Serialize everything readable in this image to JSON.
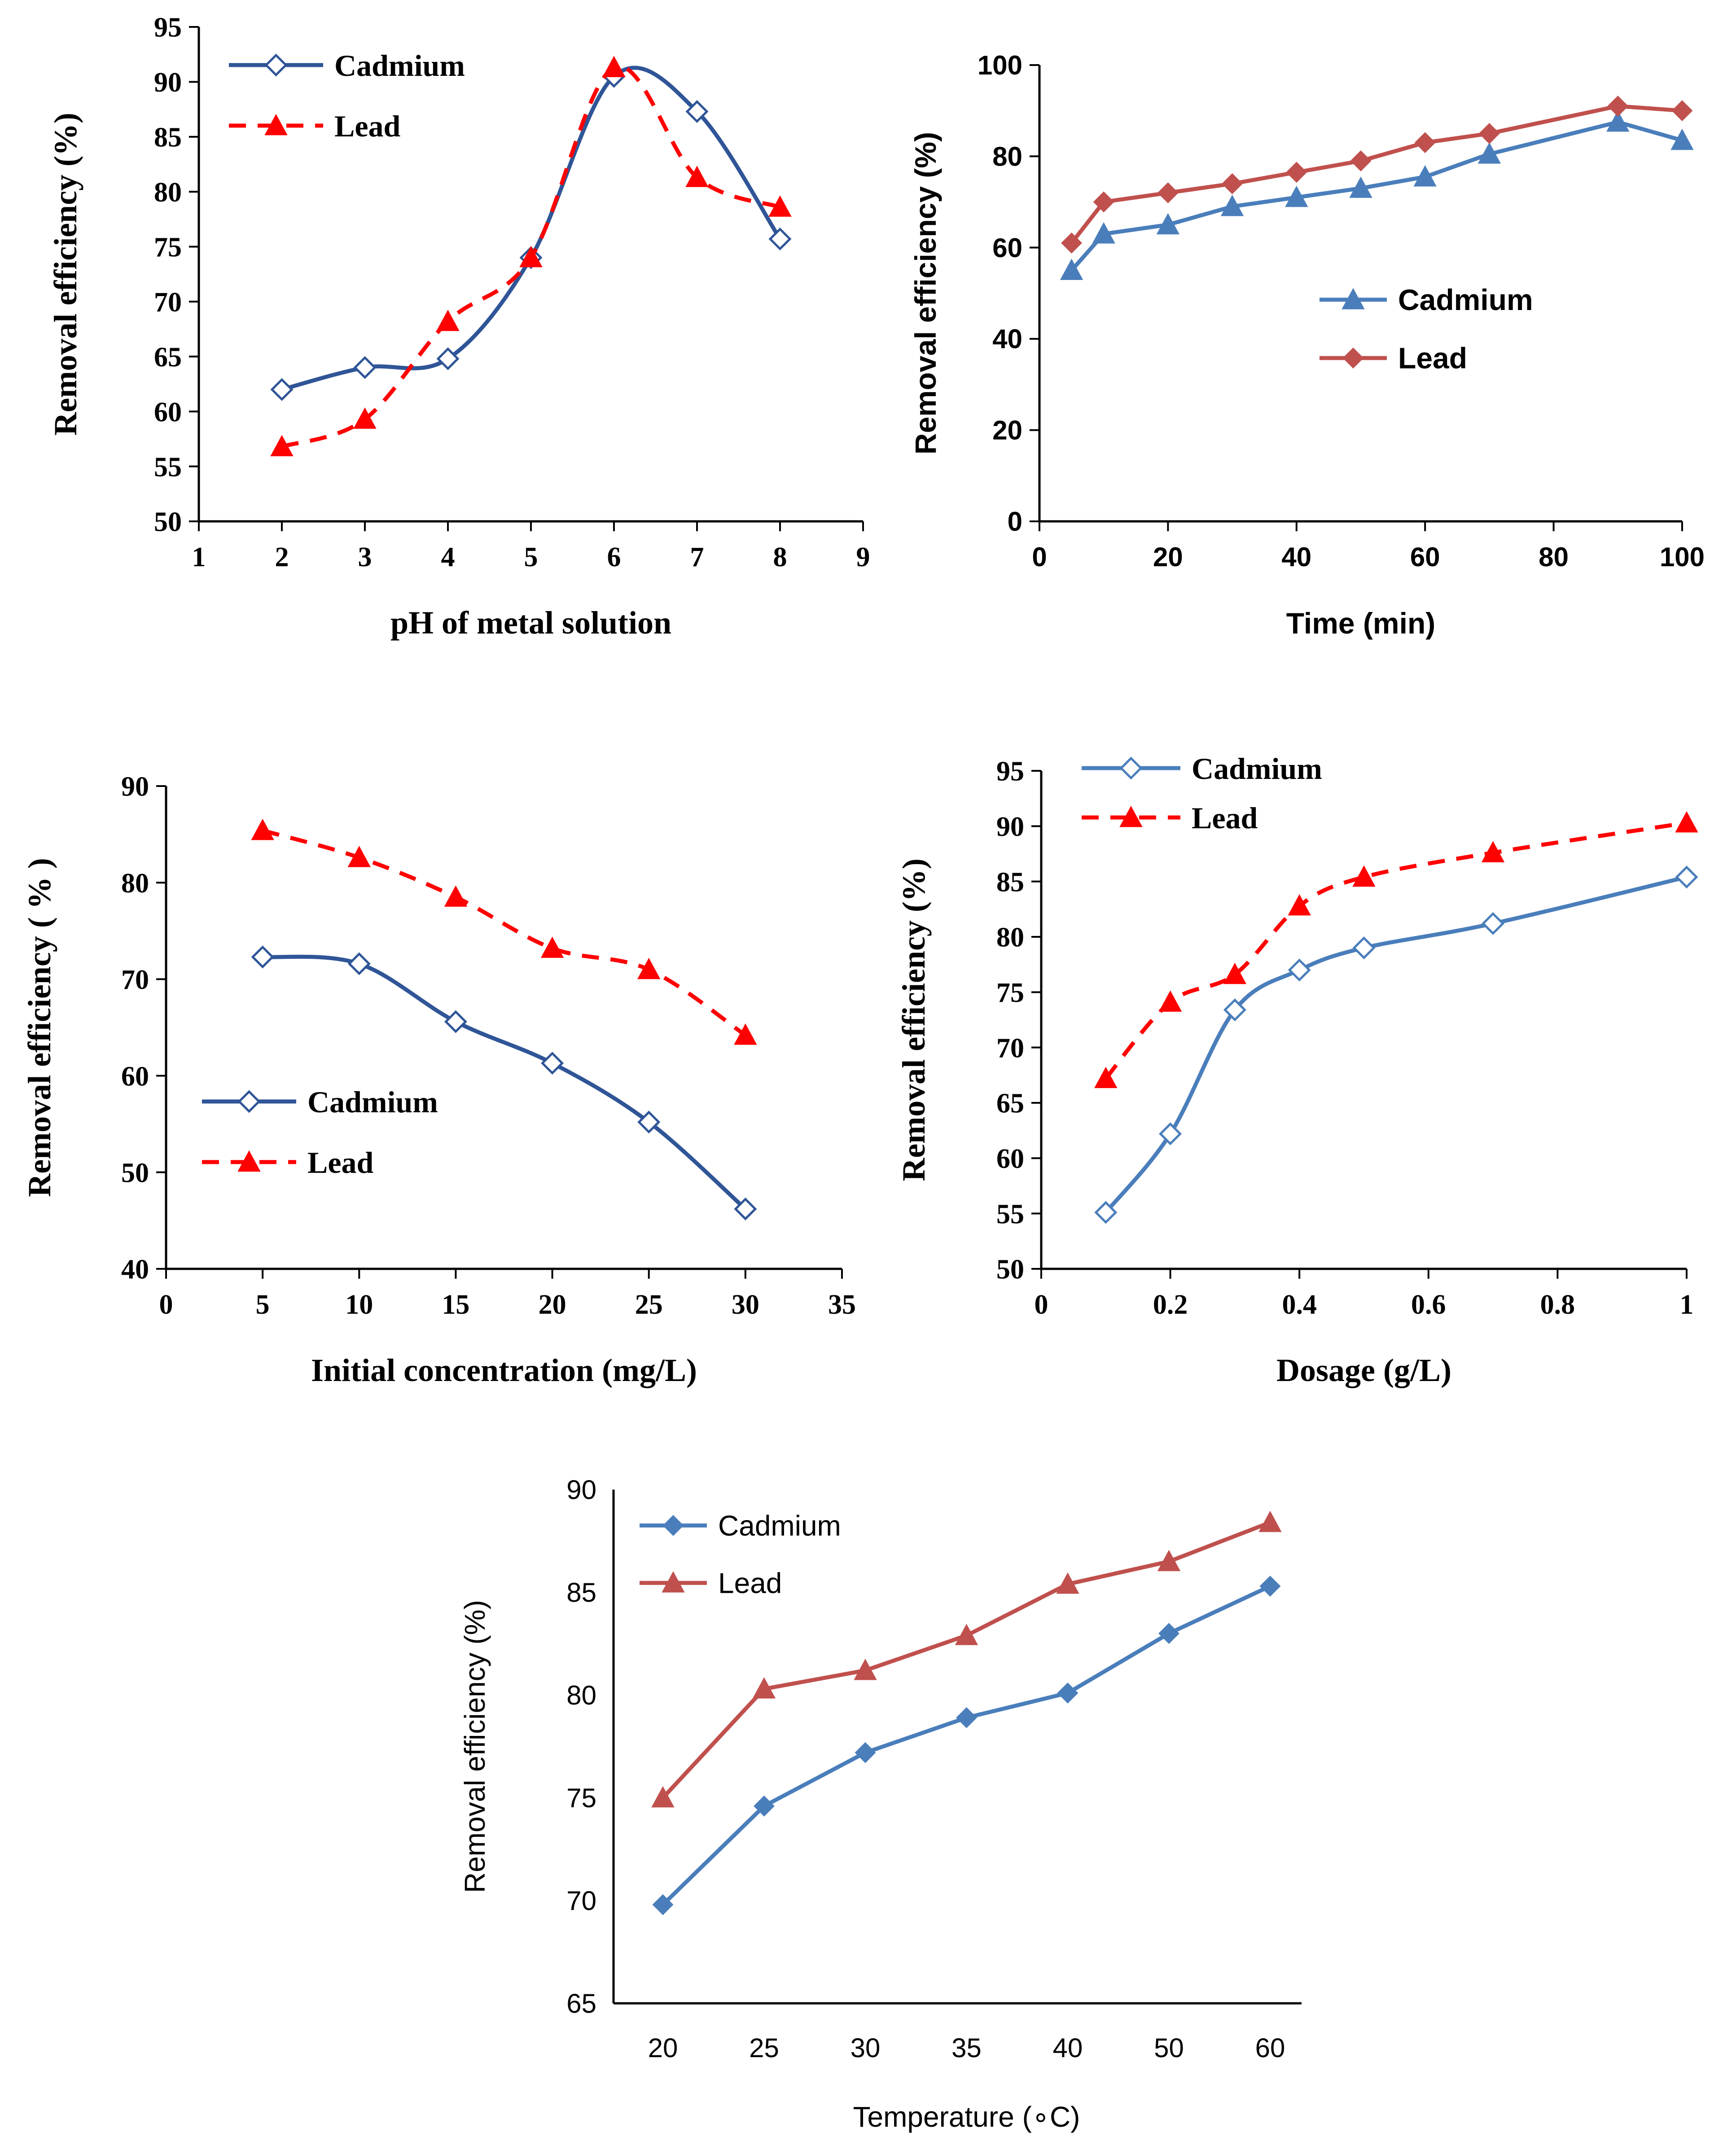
{
  "chart_data": [
    {
      "id": "ph",
      "type": "line",
      "title": "",
      "xlabel": "pH  of metal solution",
      "ylabel": "Removal  efficiency (%)",
      "xlim": [
        1,
        9
      ],
      "ylim": [
        50,
        95
      ],
      "xticks": [
        1,
        2,
        3,
        4,
        5,
        6,
        7,
        8,
        9
      ],
      "yticks": [
        50,
        55,
        60,
        65,
        70,
        75,
        80,
        85,
        90,
        95
      ],
      "legend_position": "top-left",
      "series": [
        {
          "name": "Cadmium",
          "color": "#2F5597",
          "marker": "diamond-open",
          "dash": "solid",
          "smooth": true,
          "x": [
            2,
            3,
            4,
            5,
            6,
            7,
            8
          ],
          "values": [
            62,
            64,
            64.8,
            74,
            90.5,
            87.3,
            75.7
          ]
        },
        {
          "name": "Lead",
          "color": "#FF0000",
          "marker": "triangle",
          "dash": "dashed",
          "smooth": true,
          "x": [
            2,
            3,
            4,
            5,
            6,
            7,
            8
          ],
          "values": [
            56.8,
            59.3,
            68.2,
            74,
            91.3,
            81.3,
            78.6
          ]
        }
      ]
    },
    {
      "id": "time",
      "type": "line",
      "title": "",
      "xlabel": "Time (min)",
      "ylabel": "Removal efficiency (%)",
      "xlim": [
        0,
        100
      ],
      "ylim": [
        0,
        100
      ],
      "xticks": [
        0,
        20,
        40,
        60,
        80,
        100
      ],
      "yticks": [
        0,
        20,
        40,
        60,
        80,
        100
      ],
      "legend_position": "center",
      "series": [
        {
          "name": "Cadmium",
          "color": "#4A7EBB",
          "marker": "triangle",
          "dash": "solid",
          "smooth": false,
          "x": [
            5,
            10,
            20,
            30,
            40,
            50,
            60,
            70,
            90,
            100
          ],
          "values": [
            55,
            63,
            65,
            69,
            71,
            73,
            75.5,
            80.5,
            87.5,
            83.5
          ]
        },
        {
          "name": "Lead",
          "color": "#C0504D",
          "marker": "diamond",
          "dash": "solid",
          "smooth": false,
          "x": [
            5,
            10,
            20,
            30,
            40,
            50,
            60,
            70,
            90,
            100
          ],
          "values": [
            61,
            70,
            72,
            74,
            76.5,
            79,
            83,
            85,
            91,
            90
          ]
        }
      ]
    },
    {
      "id": "concentration",
      "type": "line",
      "title": "",
      "xlabel": "Initial concentration (mg/L)",
      "ylabel": "Removal efficiency ( % )",
      "xlim": [
        0,
        35
      ],
      "ylim": [
        40,
        90
      ],
      "xticks": [
        0,
        5,
        10,
        15,
        20,
        25,
        30,
        35
      ],
      "yticks": [
        40,
        50,
        60,
        70,
        80,
        90
      ],
      "legend_position": "bottom-left",
      "series": [
        {
          "name": "Cadmium",
          "color": "#2F5597",
          "marker": "diamond-open",
          "dash": "solid",
          "smooth": true,
          "x": [
            5,
            10,
            15,
            20,
            25,
            30
          ],
          "values": [
            72.3,
            71.6,
            65.6,
            61.3,
            55.2,
            46.2
          ]
        },
        {
          "name": "Lead",
          "color": "#FF0000",
          "marker": "triangle",
          "dash": "dashed",
          "smooth": true,
          "x": [
            5,
            10,
            15,
            20,
            25,
            30
          ],
          "values": [
            85.4,
            82.6,
            78.5,
            73.2,
            71,
            64.2
          ]
        }
      ]
    },
    {
      "id": "dosage",
      "type": "line",
      "title": "",
      "xlabel": "Dosage (g/L)",
      "ylabel": "Removal efficiency (%)",
      "xlim": [
        0,
        1
      ],
      "ylim": [
        50,
        95
      ],
      "xticks": [
        0,
        0.2,
        0.4,
        0.6,
        0.8,
        1
      ],
      "xtick_labels": [
        "0",
        "0.2",
        "0.4",
        "0.6",
        "0.8",
        "1"
      ],
      "yticks": [
        50,
        55,
        60,
        65,
        70,
        75,
        80,
        85,
        90,
        95
      ],
      "legend_position": "top-left",
      "series": [
        {
          "name": "Cadmium",
          "color": "#4A7EBB",
          "marker": "diamond-open",
          "dash": "solid",
          "smooth": true,
          "x": [
            0.1,
            0.2,
            0.3,
            0.4,
            0.5,
            0.7,
            1.0
          ],
          "values": [
            55.1,
            62.2,
            73.4,
            77,
            79,
            81.2,
            85.4
          ]
        },
        {
          "name": "Lead",
          "color": "#FF0000",
          "marker": "triangle",
          "dash": "dashed",
          "smooth": true,
          "x": [
            0.1,
            0.2,
            0.3,
            0.4,
            0.5,
            0.7,
            1.0
          ],
          "values": [
            67.2,
            74.1,
            76.6,
            82.8,
            85.4,
            87.6,
            90.3
          ]
        }
      ]
    },
    {
      "id": "temperature",
      "type": "line",
      "title": "",
      "xlabel": "Temperature (∘C)",
      "ylabel": "Removal efficiency (%)",
      "categories": [
        "20",
        "25",
        "30",
        "35",
        "40",
        "50",
        "60"
      ],
      "ylim": [
        65,
        90
      ],
      "yticks": [
        65,
        70,
        75,
        80,
        85,
        90
      ],
      "legend_position": "top-left",
      "series": [
        {
          "name": "Cadmium",
          "color": "#4A7EBB",
          "marker": "diamond",
          "dash": "solid",
          "smooth": false,
          "values": [
            69.8,
            74.6,
            77.2,
            78.9,
            80.1,
            83,
            85.3
          ]
        },
        {
          "name": "Lead",
          "color": "#C0504D",
          "marker": "triangle",
          "dash": "solid",
          "smooth": false,
          "values": [
            75,
            80.3,
            81.2,
            82.9,
            85.4,
            86.5,
            88.4
          ]
        }
      ]
    }
  ]
}
